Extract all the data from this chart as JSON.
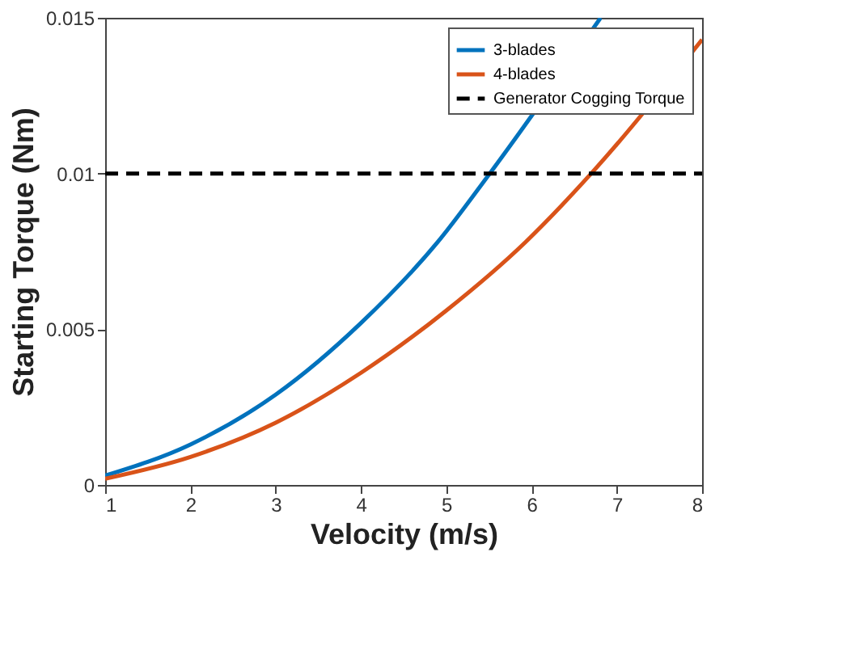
{
  "chart_data": {
    "type": "line",
    "xlabel": "Velocity (m/s)",
    "ylabel": "Starting Torque (Nm)",
    "xlim": [
      1,
      8
    ],
    "xticks": [
      1,
      2,
      3,
      4,
      5,
      6,
      7,
      8
    ],
    "ylim": [
      0,
      0.015
    ],
    "yticks": [
      0,
      0.005,
      0.01,
      0.015
    ],
    "grid": false,
    "legend": "top right",
    "marker": "none",
    "line_style": "solid",
    "series": [
      {
        "name": "3-blades",
        "color": "#0072bd",
        "x": [
          1,
          2,
          3,
          4,
          4.9,
          5.51,
          6.81
        ],
        "values": [
          0.0003,
          0.0013,
          0.0029,
          0.0052,
          0.0078,
          0.01,
          0.015
        ]
      },
      {
        "name": "4-blades",
        "color": "#d95319",
        "x": [
          1,
          2,
          3,
          4,
          5,
          5.93,
          6.7,
          8
        ],
        "values": [
          0.0002,
          0.0009,
          0.002,
          0.0036,
          0.0056,
          0.0078,
          0.01,
          0.0143
        ]
      }
    ],
    "ref_lines": [
      {
        "axis": "y",
        "value": 0.01,
        "label": "Generator Cogging Torque",
        "color": "#000000",
        "line_style": "dashed"
      }
    ]
  }
}
